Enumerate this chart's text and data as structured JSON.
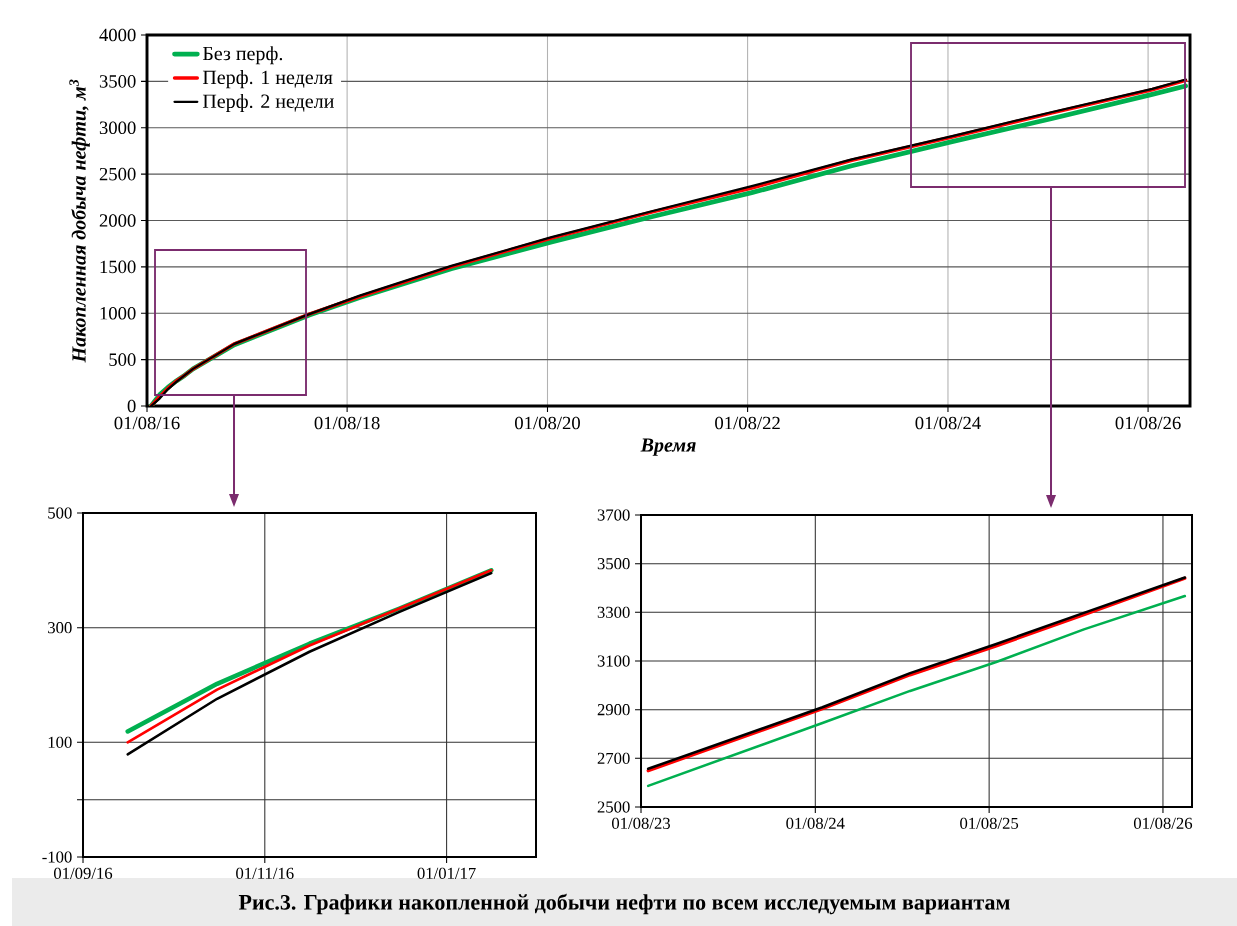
{
  "chart_data": [
    {
      "type": "line",
      "xlabel": "Время",
      "ylabel": "Накопленная добыча нефти, м$^{3}$",
      "x": [
        "2016-08-16",
        "2016-09-16",
        "2016-10-16",
        "2016-11-16",
        "2016-12-16",
        "2017-01-16",
        "2017-06-16",
        "2018-03-16",
        "2018-09-16",
        "2019-08-16",
        "2020-08-16",
        "2021-08-16",
        "2022-08-16",
        "2023-08-16",
        "2024-08-16",
        "2025-08-16",
        "2026-08-16",
        "2026-12-16"
      ],
      "series": [
        {
          "name": "Без перф.",
          "color": "#00b050",
          "values": [
            0,
            120,
            200,
            270,
            330,
            400,
            660,
            980,
            1170,
            1480,
            1770,
            2040,
            2300,
            2590,
            2850,
            3100,
            3360,
            3450
          ]
        },
        {
          "name": "Перф. 1 неделя",
          "color": "#ff0000",
          "values": [
            0,
            100,
            190,
            270,
            330,
            400,
            670,
            990,
            1180,
            1500,
            1810,
            2090,
            2350,
            2650,
            2900,
            3160,
            3410,
            3510
          ]
        },
        {
          "name": "Перф. 2 недели",
          "color": "#000000",
          "values": [
            0,
            80,
            180,
            260,
            330,
            400,
            670,
            990,
            1190,
            1510,
            1820,
            2100,
            2370,
            2660,
            2910,
            3170,
            3420,
            3520
          ]
        }
      ],
      "xlim": [
        "2016-08-01",
        "2027-01-01"
      ],
      "xticks": [
        {
          "value": "2016-08-01",
          "label": "01/08/16"
        },
        {
          "value": "2018-08-01",
          "label": "01/08/18"
        },
        {
          "value": "2020-08-01",
          "label": "01/08/20"
        },
        {
          "value": "2022-08-01",
          "label": "01/08/22"
        },
        {
          "value": "2024-08-01",
          "label": "01/08/24"
        },
        {
          "value": "2026-08-01",
          "label": "01/08/26"
        }
      ],
      "ylim": [
        0,
        4000
      ],
      "yticks": [
        0,
        500,
        1000,
        1500,
        2000,
        2500,
        3000,
        3500,
        4000
      ],
      "grid": true,
      "legend": "top left",
      "annotations": [
        "Рис.3. Графики накопленной добычи нефти по всем исследуемым вариантам"
      ]
    },
    {
      "type": "line",
      "x": [
        "2016-09-16",
        "2016-10-16",
        "2016-11-16",
        "2016-12-16",
        "2017-01-16"
      ],
      "series": [
        {
          "color": "#00b050",
          "values": [
            119,
            202,
            272,
            333,
            400
          ]
        },
        {
          "color": "#ff0000",
          "values": [
            100,
            192,
            269,
            333,
            400
          ]
        },
        {
          "color": "#000000",
          "values": [
            79,
            176,
            258,
            327,
            395
          ]
        }
      ],
      "xlim": [
        "2016-09-01",
        "2017-01-31"
      ],
      "xticks": [
        {
          "value": "2016-09-01",
          "label": "01/09/16"
        },
        {
          "value": "2016-11-01",
          "label": "01/11/16"
        },
        {
          "value": "2017-01-01",
          "label": "01/01/17"
        }
      ],
      "ylim": [
        -100,
        500
      ],
      "yticks": [
        -100,
        {
          "value": 0,
          "label": null
        },
        100,
        300,
        500
      ],
      "grid": true
    },
    {
      "type": "line",
      "x": [
        "2023-08-16",
        "2024-08-16",
        "2025-02-16",
        "2025-08-16",
        "2026-02-16",
        "2026-09-16"
      ],
      "series": [
        {
          "color": "#00b050",
          "values": [
            2587,
            2845,
            2977,
            3096,
            3230,
            3367
          ]
        },
        {
          "color": "#ff0000",
          "values": [
            2649,
            2904,
            3043,
            3162,
            3290,
            3440
          ]
        },
        {
          "color": "#000000",
          "values": [
            2657,
            2910,
            3050,
            3170,
            3298,
            3443
          ]
        }
      ],
      "xlim": [
        "2023-08-01",
        "2026-10-01"
      ],
      "xticks": [
        {
          "value": "2023-08-01",
          "label": "01/08/23"
        },
        {
          "value": "2024-08-01",
          "label": "01/08/24"
        },
        {
          "value": "2025-08-01",
          "label": "01/08/25"
        },
        {
          "value": "2026-08-01",
          "label": "01/08/26"
        }
      ],
      "ylim": [
        2500,
        3700
      ],
      "yticks": [
        2500,
        2700,
        2900,
        3100,
        3300,
        3500,
        3700
      ],
      "grid": true
    }
  ]
}
